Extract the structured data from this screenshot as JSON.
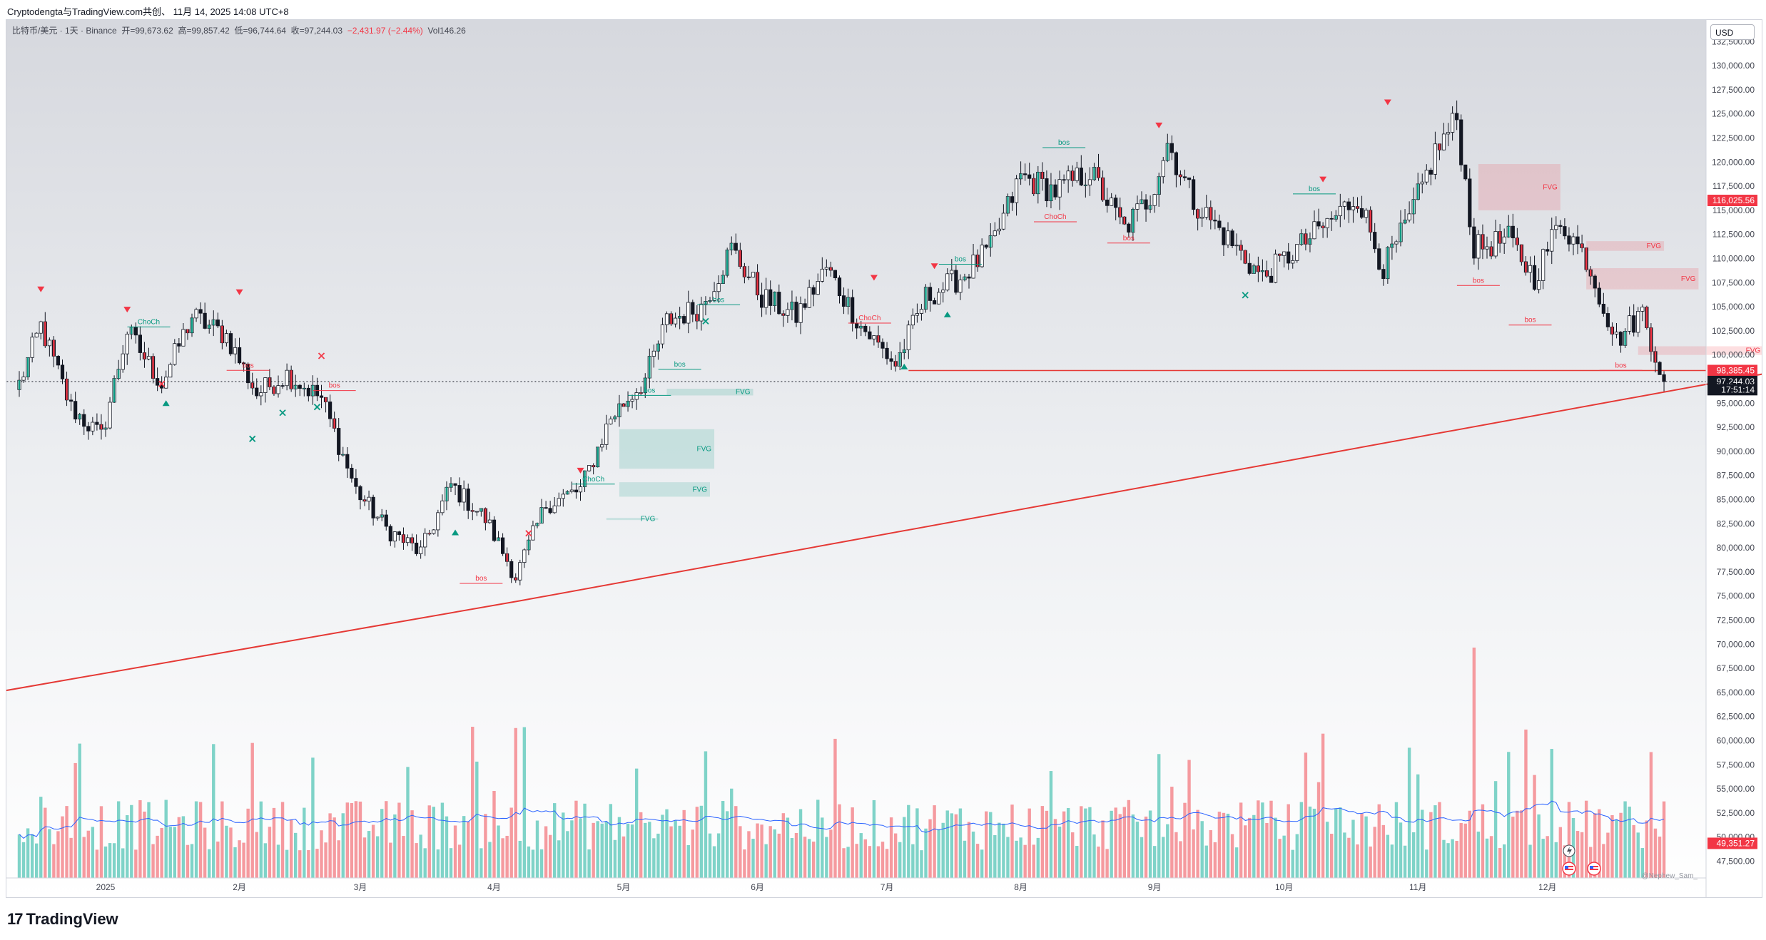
{
  "caption": "Cryptodengta与TradingView.com共创、 11月 14, 2025 14:08 UTC+8",
  "legend": {
    "symbol": "比特币/美元 · 1天 · Binance",
    "open": "开=99,673.62",
    "high": "高=99,857.42",
    "low": "低=96,744.64",
    "close": "收=97,244.03",
    "change": "−2,431.97 (−2.44%)",
    "volume": "Vol146.26"
  },
  "currency": "USD",
  "brand": {
    "logo": "17",
    "name": "TradingView"
  },
  "watermark": "@Nephew_Sam_",
  "colors": {
    "up": "#089981",
    "down": "#f23645",
    "up_vol": "#7fd3c8",
    "down_vol": "#f59a9f",
    "trendline": "#e53935",
    "ma": "#2962ff"
  },
  "chart_data": {
    "type": "candlestick",
    "timeframe": "1D",
    "x_labels": [
      "2025",
      "2月",
      "3月",
      "4月",
      "5月",
      "6月",
      "7月",
      "8月",
      "9月",
      "10月",
      "11月",
      "12月"
    ],
    "y_ticks": [
      "132,500.00",
      "130,000.00",
      "127,500.00",
      "125,000.00",
      "122,500.00",
      "120,000.00",
      "117,500.00",
      "115,000.00",
      "112,500.00",
      "110,000.00",
      "107,500.00",
      "105,000.00",
      "102,500.00",
      "100,000.00",
      "97,500.00",
      "95,000.00",
      "92,500.00",
      "90,000.00",
      "87,500.00",
      "85,000.00",
      "82,500.00",
      "80,000.00",
      "77,500.00",
      "75,000.00",
      "72,500.00",
      "70,000.00",
      "67,500.00",
      "65,000.00",
      "62,500.00",
      "60,000.00",
      "57,500.00",
      "55,000.00",
      "52,500.00",
      "50,000.00",
      "47,500.00"
    ],
    "ylim": [
      46500,
      134000
    ],
    "price_badges": [
      {
        "label": "116,025.56",
        "value": 116025.56,
        "color": "#f23645"
      },
      {
        "label": "98,385.45",
        "value": 98385.45,
        "color": "#f23645"
      },
      {
        "label": "97,244.03",
        "value": 97244.03,
        "color": "#131722"
      },
      {
        "label": "17:51:14",
        "value": 96400,
        "color": "#131722"
      },
      {
        "label": "49,351.27",
        "value": 49351.27,
        "color": "#f23645"
      }
    ],
    "anchors": [
      {
        "day": 0,
        "p": 97000
      },
      {
        "day": 5,
        "p": 103000
      },
      {
        "day": 12,
        "p": 94500
      },
      {
        "day": 19,
        "p": 91500
      },
      {
        "day": 25,
        "p": 102500
      },
      {
        "day": 33,
        "p": 97000
      },
      {
        "day": 40,
        "p": 104000
      },
      {
        "day": 48,
        "p": 102000
      },
      {
        "day": 55,
        "p": 96000
      },
      {
        "day": 62,
        "p": 98000
      },
      {
        "day": 70,
        "p": 95500
      },
      {
        "day": 78,
        "p": 86000
      },
      {
        "day": 85,
        "p": 82000
      },
      {
        "day": 93,
        "p": 79500
      },
      {
        "day": 100,
        "p": 86500
      },
      {
        "day": 108,
        "p": 83000
      },
      {
        "day": 115,
        "p": 77000
      },
      {
        "day": 122,
        "p": 84500
      },
      {
        "day": 130,
        "p": 86000
      },
      {
        "day": 137,
        "p": 93500
      },
      {
        "day": 145,
        "p": 97500
      },
      {
        "day": 150,
        "p": 103500
      },
      {
        "day": 158,
        "p": 105000
      },
      {
        "day": 165,
        "p": 111000
      },
      {
        "day": 172,
        "p": 106000
      },
      {
        "day": 180,
        "p": 104000
      },
      {
        "day": 187,
        "p": 109000
      },
      {
        "day": 195,
        "p": 103000
      },
      {
        "day": 203,
        "p": 99000
      },
      {
        "day": 210,
        "p": 106000
      },
      {
        "day": 218,
        "p": 108000
      },
      {
        "day": 225,
        "p": 111000
      },
      {
        "day": 232,
        "p": 118500
      },
      {
        "day": 240,
        "p": 117000
      },
      {
        "day": 248,
        "p": 119000
      },
      {
        "day": 256,
        "p": 113000
      },
      {
        "day": 262,
        "p": 116500
      },
      {
        "day": 266,
        "p": 122000
      },
      {
        "day": 272,
        "p": 116000
      },
      {
        "day": 280,
        "p": 112000
      },
      {
        "day": 288,
        "p": 108000
      },
      {
        "day": 296,
        "p": 111000
      },
      {
        "day": 304,
        "p": 114000
      },
      {
        "day": 310,
        "p": 116500
      },
      {
        "day": 316,
        "p": 109000
      },
      {
        "day": 322,
        "p": 114000
      },
      {
        "day": 328,
        "p": 121000
      },
      {
        "day": 333,
        "p": 124500
      },
      {
        "day": 337,
        "p": 111000
      },
      {
        "day": 345,
        "p": 112000
      },
      {
        "day": 351,
        "p": 108000
      },
      {
        "day": 357,
        "p": 114000
      },
      {
        "day": 363,
        "p": 110000
      },
      {
        "day": 370,
        "p": 101500
      },
      {
        "day": 376,
        "p": 104500
      },
      {
        "day": 381,
        "p": 97244
      }
    ],
    "trendline": [
      {
        "day": -12,
        "p": 64500
      },
      {
        "day": 116,
        "p": 74500
      },
      {
        "day": 422,
        "p": 99500
      }
    ],
    "levels": [
      {
        "label": "",
        "value": 98385.45,
        "from_day": 206,
        "to_day": 400,
        "color": "#e53935"
      },
      {
        "label": "",
        "value": 97244.03,
        "from_day": -12,
        "to_day": 422,
        "color": "#131722",
        "dotted": true
      }
    ],
    "fvg_zones": [
      {
        "label": "FVG",
        "from_day": 150,
        "to_day": 170,
        "top": 96500,
        "bottom": 95800,
        "kind": "bull"
      },
      {
        "label": "FVG",
        "from_day": 139,
        "to_day": 161,
        "top": 92300,
        "bottom": 88200,
        "kind": "bull"
      },
      {
        "label": "FVG",
        "from_day": 139,
        "to_day": 160,
        "top": 86800,
        "bottom": 85300,
        "kind": "bull"
      },
      {
        "label": "FVG",
        "from_day": 136,
        "to_day": 148,
        "top": 83100,
        "bottom": 82900,
        "kind": "bull"
      },
      {
        "label": "FVG",
        "from_day": 338,
        "to_day": 357,
        "top": 119800,
        "bottom": 115000,
        "kind": "bear"
      },
      {
        "label": "FVG",
        "from_day": 363,
        "to_day": 381,
        "top": 111800,
        "bottom": 110800,
        "kind": "bear"
      },
      {
        "label": "FVG",
        "from_day": 363,
        "to_day": 389,
        "top": 109000,
        "bottom": 106800,
        "kind": "bear"
      },
      {
        "label": "FVG",
        "from_day": 375,
        "to_day": 404,
        "top": 100900,
        "bottom": 100000,
        "kind": "bear"
      }
    ],
    "structure_labels": [
      {
        "label": "ChoCh",
        "day": 30,
        "p": 103200,
        "color": "#089981"
      },
      {
        "label": "bos",
        "day": 53,
        "p": 98700,
        "color": "#f23645"
      },
      {
        "label": "bos",
        "day": 73,
        "p": 96600,
        "color": "#f23645"
      },
      {
        "label": "bos",
        "day": 107,
        "p": 76600,
        "color": "#f23645"
      },
      {
        "label": "ChoCh",
        "day": 133,
        "p": 86900,
        "color": "#089981"
      },
      {
        "label": "bos",
        "day": 146,
        "p": 96100,
        "color": "#089981"
      },
      {
        "label": "bos",
        "day": 153,
        "p": 98800,
        "color": "#089981"
      },
      {
        "label": "bos",
        "day": 162,
        "p": 105500,
        "color": "#089981"
      },
      {
        "label": "ChoCh",
        "day": 197,
        "p": 103600,
        "color": "#f23645"
      },
      {
        "label": "bos",
        "day": 218,
        "p": 109700,
        "color": "#089981"
      },
      {
        "label": "bos",
        "day": 242,
        "p": 121800,
        "color": "#089981"
      },
      {
        "label": "ChoCh",
        "day": 240,
        "p": 114100,
        "color": "#f23645"
      },
      {
        "label": "bos",
        "day": 257,
        "p": 111900,
        "color": "#f23645"
      },
      {
        "label": "bos",
        "day": 300,
        "p": 117000,
        "color": "#089981"
      },
      {
        "label": "bos",
        "day": 338,
        "p": 107500,
        "color": "#f23645"
      },
      {
        "label": "bos",
        "day": 350,
        "p": 103400,
        "color": "#f23645"
      },
      {
        "label": "bos",
        "day": 371,
        "p": 98700,
        "color": "#f23645"
      }
    ],
    "markers": [
      {
        "shape": "tri-down",
        "day": 5,
        "p": 106800,
        "color": "#f23645"
      },
      {
        "shape": "tri-down",
        "day": 25,
        "p": 104700,
        "color": "#f23645"
      },
      {
        "shape": "tri-down",
        "day": 51,
        "p": 106500,
        "color": "#f23645"
      },
      {
        "shape": "tri-down",
        "day": 130,
        "p": 88000,
        "color": "#f23645"
      },
      {
        "shape": "tri-down",
        "day": 198,
        "p": 108000,
        "color": "#f23645"
      },
      {
        "shape": "tri-down",
        "day": 212,
        "p": 109200,
        "color": "#f23645"
      },
      {
        "shape": "tri-down",
        "day": 264,
        "p": 123800,
        "color": "#f23645"
      },
      {
        "shape": "tri-down",
        "day": 302,
        "p": 118200,
        "color": "#f23645"
      },
      {
        "shape": "tri-down",
        "day": 317,
        "p": 126200,
        "color": "#f23645"
      },
      {
        "shape": "tri-up",
        "day": 34,
        "p": 95000,
        "color": "#089981"
      },
      {
        "shape": "tri-up",
        "day": 101,
        "p": 81600,
        "color": "#089981"
      },
      {
        "shape": "tri-up",
        "day": 205,
        "p": 98800,
        "color": "#089981"
      },
      {
        "shape": "tri-up",
        "day": 215,
        "p": 104200,
        "color": "#089981"
      },
      {
        "shape": "x",
        "day": 33,
        "p": 97000,
        "color": "#f23645"
      },
      {
        "shape": "x",
        "day": 70,
        "p": 99900,
        "color": "#f23645"
      },
      {
        "shape": "x",
        "day": 118,
        "p": 81500,
        "color": "#f23645"
      },
      {
        "shape": "x",
        "day": 54,
        "p": 91300,
        "color": "#089981"
      },
      {
        "shape": "x",
        "day": 61,
        "p": 94000,
        "color": "#089981"
      },
      {
        "shape": "x",
        "day": 69,
        "p": 94600,
        "color": "#089981"
      },
      {
        "shape": "x",
        "day": 159,
        "p": 103500,
        "color": "#089981"
      },
      {
        "shape": "x",
        "day": 284,
        "p": 106200,
        "color": "#089981"
      }
    ],
    "volume": {
      "ylim": [
        0,
        100
      ],
      "ma_color": "#2962ff"
    }
  }
}
